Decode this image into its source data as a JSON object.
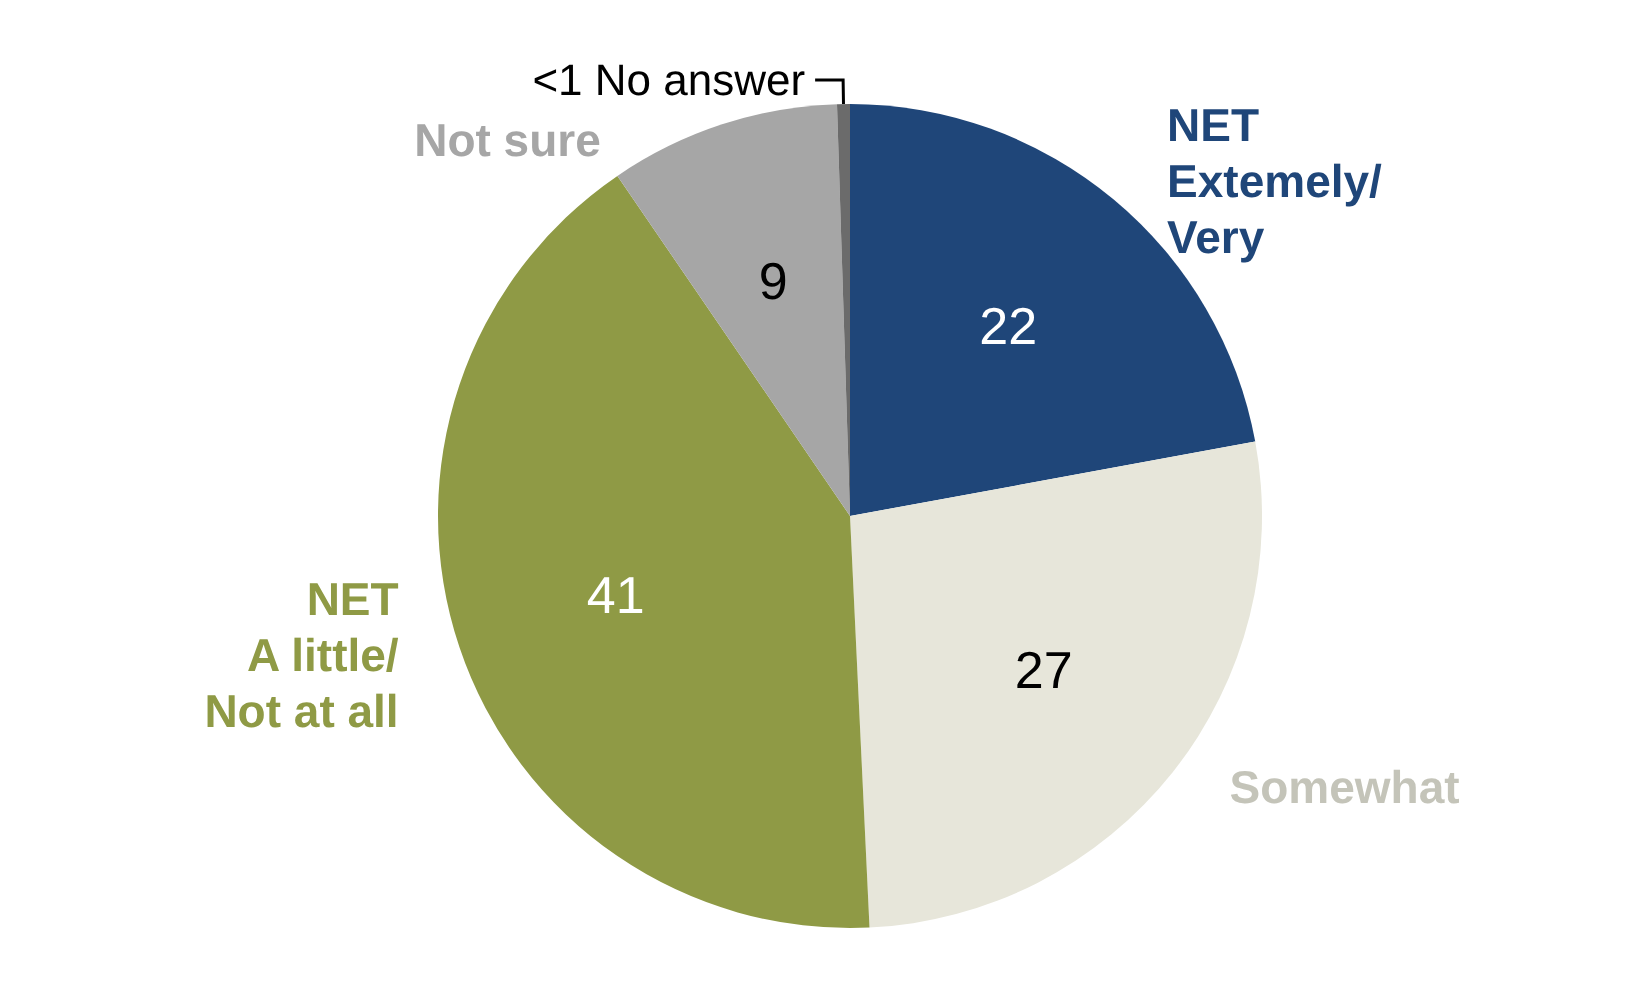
{
  "chart_data": {
    "type": "pie",
    "categories": [
      "NET\nExtemely/\nVery",
      "Somewhat",
      "NET\nA little/\nNot at all",
      "Not sure",
      "No answer"
    ],
    "values": [
      22,
      27,
      41,
      9,
      0.5
    ],
    "value_labels": [
      "22",
      "27",
      "41",
      "9",
      "<1"
    ],
    "colors": [
      "#1f4679",
      "#e7e6da",
      "#8f9a45",
      "#a6a6a6",
      "#6b6b6b"
    ]
  }
}
